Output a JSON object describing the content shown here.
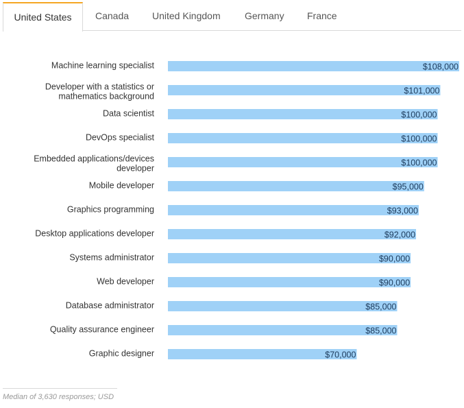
{
  "tabs": [
    {
      "label": "United States",
      "active": true
    },
    {
      "label": "Canada",
      "active": false
    },
    {
      "label": "United Kingdom",
      "active": false
    },
    {
      "label": "Germany",
      "active": false
    },
    {
      "label": "France",
      "active": false
    }
  ],
  "footnote": "Median of 3,630 responses; USD",
  "colors": {
    "bar": "#9fd1f7",
    "accent": "#f5a623",
    "label": "#333333",
    "value_label": "#1d3b5c"
  },
  "chart_data": {
    "type": "bar",
    "orientation": "horizontal",
    "title": "",
    "xlabel": "",
    "ylabel": "",
    "xlim": [
      0,
      108000
    ],
    "grid": false,
    "categories": [
      [
        "Machine learning specialist"
      ],
      [
        "Developer with a statistics or",
        "mathematics background"
      ],
      [
        "Data scientist"
      ],
      [
        "DevOps specialist"
      ],
      [
        "Embedded applications/devices",
        "developer"
      ],
      [
        "Mobile developer"
      ],
      [
        "Graphics programming"
      ],
      [
        "Desktop applications developer"
      ],
      [
        "Systems administrator"
      ],
      [
        "Web developer"
      ],
      [
        "Database administrator"
      ],
      [
        "Quality assurance engineer"
      ],
      [
        "Graphic designer"
      ]
    ],
    "values": [
      108000,
      101000,
      100000,
      100000,
      100000,
      95000,
      93000,
      92000,
      90000,
      90000,
      85000,
      85000,
      70000
    ],
    "value_labels": [
      "$108,000",
      "$101,000",
      "$100,000",
      "$100,000",
      "$100,000",
      "$95,000",
      "$93,000",
      "$92,000",
      "$90,000",
      "$90,000",
      "$85,000",
      "$85,000",
      "$70,000"
    ]
  }
}
